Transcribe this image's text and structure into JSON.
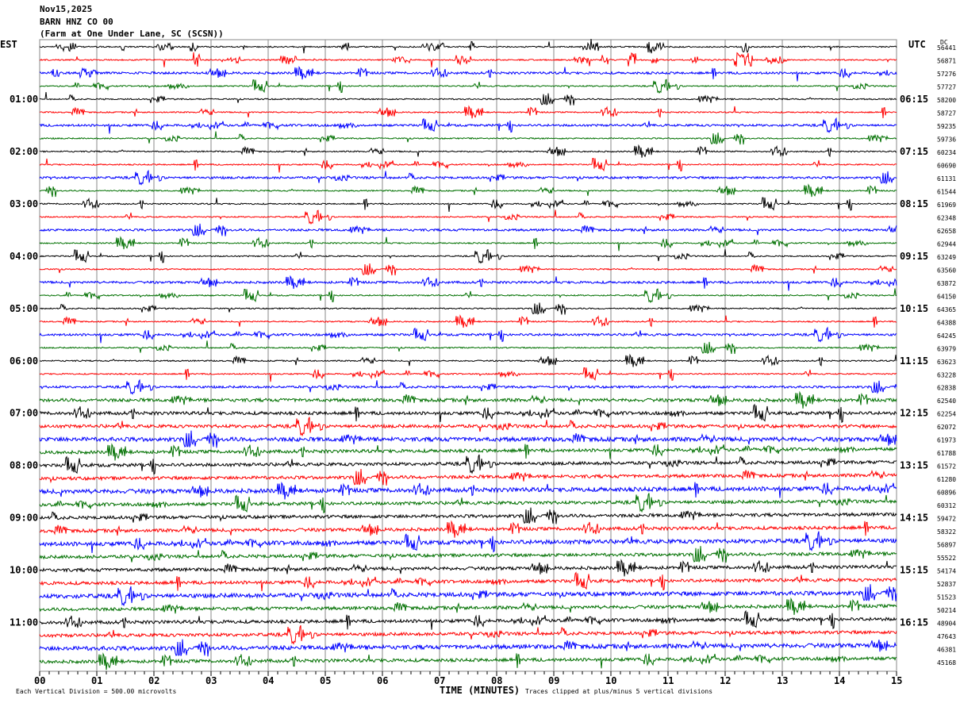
{
  "header": {
    "date": "Nov15,2025",
    "station": "BARN HNZ CO 00",
    "location": "(Farm at One Under Lane, SC (SCSN))"
  },
  "chart_data": {
    "type": "helicorder",
    "left_timezone": "EST",
    "right_timezone": "UTC",
    "dc_header": "DC",
    "xlabel": "TIME (MINUTES)",
    "xlim": [
      0,
      15
    ],
    "x_ticks": [
      "00",
      "01",
      "02",
      "03",
      "04",
      "05",
      "06",
      "07",
      "08",
      "09",
      "10",
      "11",
      "12",
      "13",
      "14",
      "15"
    ],
    "trace_colors": [
      "#000000",
      "#ff0000",
      "#0000ff",
      "#007000"
    ],
    "left_labels": [
      {
        "row": 4,
        "text": "01:00"
      },
      {
        "row": 8,
        "text": "02:00"
      },
      {
        "row": 12,
        "text": "03:00"
      },
      {
        "row": 16,
        "text": "04:00"
      },
      {
        "row": 20,
        "text": "05:00"
      },
      {
        "row": 24,
        "text": "06:00"
      },
      {
        "row": 28,
        "text": "07:00"
      },
      {
        "row": 32,
        "text": "08:00"
      },
      {
        "row": 36,
        "text": "09:00"
      },
      {
        "row": 40,
        "text": "10:00"
      },
      {
        "row": 44,
        "text": "11:00"
      }
    ],
    "right_labels": [
      {
        "row": 4,
        "text": "06:15"
      },
      {
        "row": 8,
        "text": "07:15"
      },
      {
        "row": 12,
        "text": "08:15"
      },
      {
        "row": 16,
        "text": "09:15"
      },
      {
        "row": 20,
        "text": "10:15"
      },
      {
        "row": 24,
        "text": "11:15"
      },
      {
        "row": 28,
        "text": "12:15"
      },
      {
        "row": 32,
        "text": "13:15"
      },
      {
        "row": 36,
        "text": "14:15"
      },
      {
        "row": 40,
        "text": "15:15"
      },
      {
        "row": 44,
        "text": "16:15"
      }
    ],
    "dc_values": [
      "56441",
      "56871",
      "57276",
      "57727",
      "58200",
      "58727",
      "59235",
      "59736",
      "60234",
      "60690",
      "61131",
      "61544",
      "61969",
      "62348",
      "62658",
      "62944",
      "63249",
      "63560",
      "63872",
      "64150",
      "64365",
      "64388",
      "64245",
      "63979",
      "63623",
      "63228",
      "62838",
      "62540",
      "62254",
      "62072",
      "61973",
      "61788",
      "61572",
      "61280",
      "60896",
      "60312",
      "59472",
      "58322",
      "56897",
      "55522",
      "54174",
      "52837",
      "51523",
      "50214",
      "48904",
      "47643",
      "46381",
      "45168"
    ],
    "scale_note": "Each Vertical Division =  500.00 microvolts",
    "clip_note": "Traces clipped at plus/minus 5 vertical divisions"
  }
}
